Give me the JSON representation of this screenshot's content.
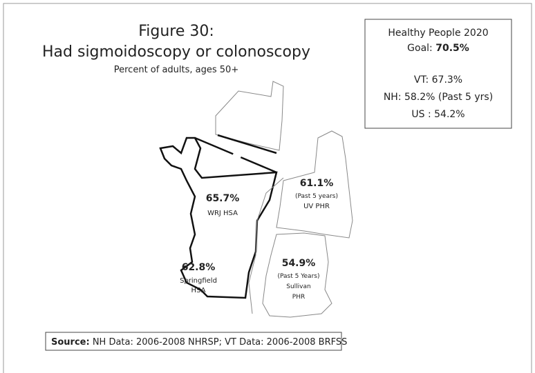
{
  "title": {
    "line1": "Figure 30:",
    "line2": "Had sigmoidoscopy or colonoscopy",
    "subtitle": "Percent of adults, ages 50+"
  },
  "goal_box": {
    "heading": "Healthy People 2020",
    "goal_label": "Goal:",
    "goal_value": "70.5%",
    "lines": [
      "VT:  67.3%",
      "NH:  58.2%  (Past 5 yrs)",
      "US :  54.2%"
    ]
  },
  "regions": [
    {
      "value": "65.7%",
      "name": "WRJ HSA"
    },
    {
      "value": "62.8%",
      "name_lines": [
        "Springfield",
        "HSA"
      ]
    },
    {
      "value": "61.1%",
      "note": "(Past 5 years)",
      "name": "UV  PHR"
    },
    {
      "value": "54.9%",
      "note": "(Past  5 Years)",
      "name_lines": [
        "Sullivan",
        "PHR"
      ]
    }
  ],
  "source": {
    "label": "Source:",
    "text": "NH Data: 2006-2008 NHRSP; VT Data:  2006-2008 BRFSS"
  }
}
